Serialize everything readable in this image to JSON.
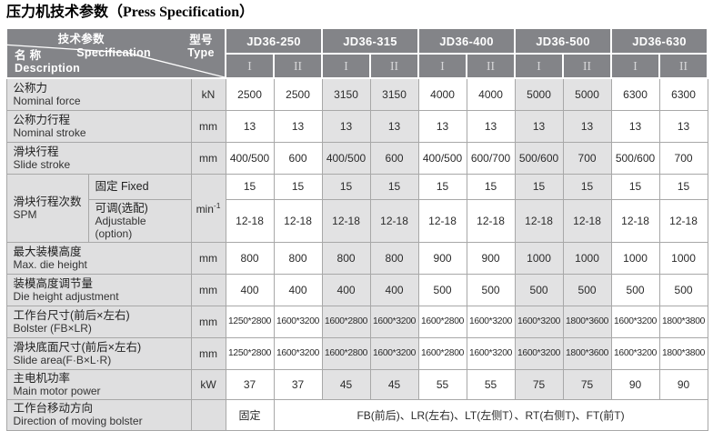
{
  "title": {
    "cn": "压力机技术参数",
    "en": "（Press Specification）"
  },
  "header": {
    "corner": {
      "param_cn": "技术参数",
      "param_en": "Specification",
      "name_cn": "名 称",
      "name_en": "Description",
      "type_cn": "型号",
      "type_en": "Type"
    },
    "models": [
      "JD36-250",
      "JD36-315",
      "JD36-400",
      "JD36-500",
      "JD36-630"
    ],
    "subcols": [
      "I",
      "II"
    ]
  },
  "rows": [
    {
      "kind": "plain",
      "id": "nominal-force",
      "label_cn": "公称力",
      "label_en": "Nominal force",
      "unit": "kN",
      "values": [
        "2500",
        "2500",
        "3150",
        "3150",
        "4000",
        "4000",
        "5000",
        "5000",
        "6300",
        "6300"
      ]
    },
    {
      "kind": "plain",
      "id": "nominal-stroke",
      "label_cn": "公称力行程",
      "label_en": "Nominal stroke",
      "unit": "mm",
      "values": [
        "13",
        "13",
        "13",
        "13",
        "13",
        "13",
        "13",
        "13",
        "13",
        "13"
      ]
    },
    {
      "kind": "plain",
      "id": "slide-stroke",
      "label_cn": "滑块行程",
      "label_en": "Slide stroke",
      "unit": "mm",
      "values": [
        "400/500",
        "600",
        "400/500",
        "600",
        "400/500",
        "600/700",
        "500/600",
        "700",
        "500/600",
        "700"
      ]
    },
    {
      "kind": "spm",
      "id": "spm",
      "label_cn": "滑块行程次数",
      "label_en": "SPM",
      "unit": "min",
      "unit_sup": "-1",
      "fixed": {
        "label_cn": "固定",
        "label_en": "Fixed",
        "values": [
          "15",
          "15",
          "15",
          "15",
          "15",
          "15",
          "15",
          "15",
          "15",
          "15"
        ]
      },
      "adjustable": {
        "label_cn": "可调(选配)",
        "label_en": "Adjustable (option)",
        "values": [
          "12-18",
          "12-18",
          "12-18",
          "12-18",
          "12-18",
          "12-18",
          "12-18",
          "12-18",
          "12-18",
          "12-18"
        ]
      }
    },
    {
      "kind": "plain",
      "id": "max-die-height",
      "label_cn": "最大装模高度",
      "label_en": "Max. die height",
      "unit": "mm",
      "values": [
        "800",
        "800",
        "800",
        "800",
        "900",
        "900",
        "1000",
        "1000",
        "1000",
        "1000"
      ]
    },
    {
      "kind": "plain",
      "id": "die-height-adjustment",
      "label_cn": "装模高度调节量",
      "label_en": "Die height adjustment",
      "unit": "mm",
      "values": [
        "400",
        "400",
        "400",
        "400",
        "500",
        "500",
        "500",
        "500",
        "500",
        "500"
      ]
    },
    {
      "kind": "plain",
      "id": "bolster-size",
      "small": true,
      "label_cn": "工作台尺寸(前后×左右)",
      "label_en": "Bolster (FB×LR)",
      "unit": "mm",
      "values": [
        "1250*2800",
        "1600*3200",
        "1600*2800",
        "1600*3200",
        "1600*2800",
        "1600*3200",
        "1600*3200",
        "1800*3600",
        "1600*3200",
        "1800*3800"
      ]
    },
    {
      "kind": "plain",
      "id": "slide-area",
      "small": true,
      "label_cn": "滑块底面尺寸(前后×左右)",
      "label_en": "Slide area(F·B×L·R)",
      "unit": "mm",
      "values": [
        "1250*2800",
        "1600*3200",
        "1600*2800",
        "1600*3200",
        "1600*2800",
        "1600*3200",
        "1600*3200",
        "1800*3600",
        "1600*3200",
        "1800*3800"
      ]
    },
    {
      "kind": "plain",
      "id": "main-motor-power",
      "label_cn": "主电机功率",
      "label_en": "Main motor power",
      "unit": "kW",
      "values": [
        "37",
        "37",
        "45",
        "45",
        "55",
        "55",
        "75",
        "75",
        "90",
        "90"
      ]
    },
    {
      "kind": "direction",
      "id": "moving-bolster-direction",
      "label_cn": "工作台移动方向",
      "label_en": "Direction of moving bolster",
      "unit": "",
      "first_value": "固定",
      "merged_value": "FB(前后)、LR(左右)、LT(左侧T）、RT(右侧T)、FT(前T)"
    }
  ],
  "colors": {
    "header_bg": "#838488",
    "label_bg": "#dfdfe0",
    "shade_bg": "#e2e2e3",
    "border": "#a8a8a8",
    "header_text": "#ffffff",
    "subcol_text": "#d6d6d8"
  }
}
